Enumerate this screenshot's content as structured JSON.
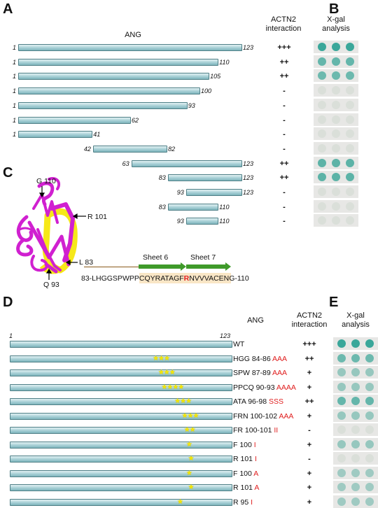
{
  "panels": {
    "A": "A",
    "B": "B",
    "C": "C",
    "D": "D",
    "E": "E"
  },
  "panel_a": {
    "title": "ANG",
    "interaction_header": [
      "ACTN2",
      "interaction"
    ],
    "constructs": [
      {
        "start": 1,
        "end": 123,
        "interaction": "+++",
        "xgal": 1.0
      },
      {
        "start": 1,
        "end": 110,
        "interaction": "++",
        "xgal": 0.75
      },
      {
        "start": 1,
        "end": 105,
        "interaction": "++",
        "xgal": 0.7
      },
      {
        "start": 1,
        "end": 100,
        "interaction": "-",
        "xgal": 0.05
      },
      {
        "start": 1,
        "end": 93,
        "interaction": "-",
        "xgal": 0.05
      },
      {
        "start": 1,
        "end": 62,
        "interaction": "-",
        "xgal": 0.05
      },
      {
        "start": 1,
        "end": 41,
        "interaction": "-",
        "xgal": 0.05
      },
      {
        "start": 42,
        "end": 82,
        "interaction": "-",
        "xgal": 0.05
      },
      {
        "start": 63,
        "end": 123,
        "interaction": "++",
        "xgal": 0.8
      },
      {
        "start": 83,
        "end": 123,
        "interaction": "++",
        "xgal": 0.8
      },
      {
        "start": 93,
        "end": 123,
        "interaction": "-",
        "xgal": 0.05
      },
      {
        "start": 83,
        "end": 110,
        "interaction": "-",
        "xgal": 0.05
      },
      {
        "start": 93,
        "end": 110,
        "interaction": "-",
        "xgal": 0.05
      }
    ]
  },
  "panel_b": {
    "header": [
      "X-gal",
      "analysis"
    ]
  },
  "panel_c": {
    "labels": {
      "g110": "G 110",
      "r101": "R 101",
      "l83": "L 83",
      "q93": "Q 93"
    },
    "sheet6": "Sheet 6",
    "sheet7": "Sheet 7",
    "seq_prefix": "83-LHGGSPWPPC",
    "seq_s6": "QYRATAGF",
    "seq_r": "R",
    "seq_s7": "NVVVACEN",
    "seq_suffix": "G-110"
  },
  "panel_d": {
    "title": "ANG",
    "interaction_header": [
      "ACTN2",
      "interaction"
    ],
    "axis_start": "1",
    "axis_end": "123",
    "mutants": [
      {
        "wt": "WT",
        "mut": "",
        "interaction": "+++",
        "xgal": 1.0,
        "pos": null,
        "stars": ""
      },
      {
        "wt": "HGG 84-86 ",
        "mut": "AAA",
        "interaction": "++",
        "xgal": 0.7,
        "pos": 85,
        "stars": "★★★"
      },
      {
        "wt": "SPW 87-89 ",
        "mut": "AAA",
        "interaction": "+",
        "xgal": 0.45,
        "pos": 88,
        "stars": "★★★"
      },
      {
        "wt": "PPCQ 90-93 ",
        "mut": "AAAA",
        "interaction": "+",
        "xgal": 0.45,
        "pos": 91.5,
        "stars": "★★★★"
      },
      {
        "wt": "ATA 96-98 ",
        "mut": "SSS",
        "interaction": "++",
        "xgal": 0.75,
        "pos": 97,
        "stars": "★★★"
      },
      {
        "wt": "FRN 100-102 ",
        "mut": "AAA",
        "interaction": "+",
        "xgal": 0.45,
        "pos": 101,
        "stars": "★★★"
      },
      {
        "wt": "FR 100-101 ",
        "mut": "II",
        "interaction": "-",
        "xgal": 0.05,
        "pos": 100.5,
        "stars": "★★"
      },
      {
        "wt": "F 100 ",
        "mut": "I",
        "interaction": "+",
        "xgal": 0.45,
        "pos": 100,
        "stars": "★"
      },
      {
        "wt": "R 101 ",
        "mut": "I",
        "interaction": "-",
        "xgal": 0.05,
        "pos": 101,
        "stars": "★"
      },
      {
        "wt": "F 100 ",
        "mut": "A",
        "interaction": "+",
        "xgal": 0.4,
        "pos": 100,
        "stars": "★"
      },
      {
        "wt": "R 101 ",
        "mut": "A",
        "interaction": "+",
        "xgal": 0.4,
        "pos": 101,
        "stars": "★"
      },
      {
        "wt": "R 95 ",
        "mut": "I",
        "interaction": "+",
        "xgal": 0.4,
        "pos": 95,
        "stars": "★"
      }
    ]
  },
  "panel_e": {
    "header": [
      "X-gal",
      "analysis"
    ]
  },
  "colors": {
    "bar_fill": "#a6cfd5",
    "bar_border": "#4e7f86",
    "xgal_positive": "#3aa79a",
    "mutation_red": "#e02020",
    "star": "#f3e600",
    "protein_magenta": "#d020d0",
    "protein_yellow": "#f5e600",
    "sheet_green": "#3f9a2a",
    "sheet_bg": "#f9e6c6"
  }
}
